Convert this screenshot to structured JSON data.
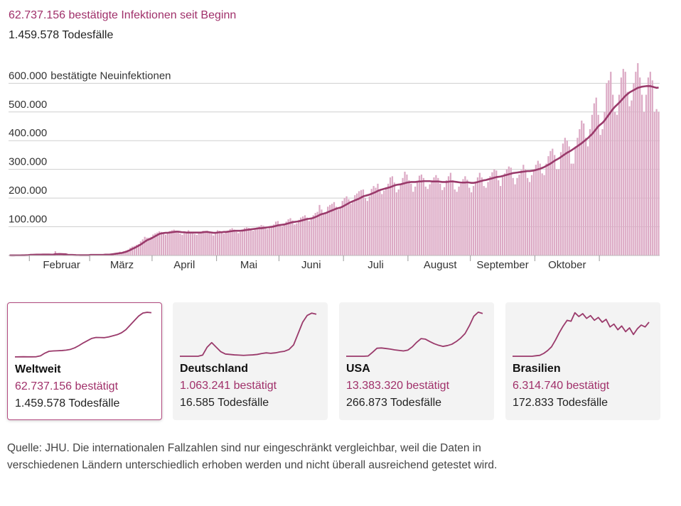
{
  "header": {
    "confirmed": "62.737.156 bestätigte Infektionen seit Beginn",
    "deaths": "1.459.578 Todesfälle"
  },
  "chart_data": {
    "type": "bar",
    "categories": [
      null,
      null,
      null,
      null,
      null,
      null,
      null,
      null,
      null,
      null,
      null,
      null,
      null,
      null,
      null,
      null,
      null,
      null,
      null,
      null,
      null,
      null,
      null,
      null,
      null,
      "Februar",
      null,
      null,
      null,
      null,
      null,
      null,
      null,
      null,
      null,
      null,
      null,
      null,
      null,
      null,
      null,
      null,
      null,
      null,
      null,
      null,
      null,
      null,
      null,
      null,
      null,
      null,
      null,
      null,
      "März",
      null,
      null,
      null,
      null,
      null,
      null,
      null,
      null,
      null,
      null,
      null,
      null,
      null,
      null,
      null,
      null,
      null,
      null,
      null,
      null,
      null,
      null,
      null,
      null,
      null,
      null,
      null,
      null,
      null,
      "April",
      null,
      null,
      null,
      null,
      null,
      null,
      null,
      null,
      null,
      null,
      null,
      null,
      null,
      null,
      null,
      null,
      null,
      null,
      null,
      null,
      null,
      null,
      null,
      null,
      null,
      null,
      null,
      null,
      null,
      null,
      "Mai",
      null,
      null,
      null,
      null,
      null,
      null,
      null,
      null,
      null,
      null,
      null,
      null,
      null,
      null,
      null,
      null,
      null,
      null,
      null,
      null,
      null,
      null,
      null,
      null,
      null,
      null,
      null,
      null,
      null,
      "Juni",
      null,
      null,
      null,
      null,
      null,
      null,
      null,
      null,
      null,
      null,
      null,
      null,
      null,
      null,
      null,
      null,
      null,
      null,
      null,
      null,
      null,
      null,
      null,
      null,
      null,
      null,
      null,
      null,
      null,
      null,
      "Juli",
      null,
      null,
      null,
      null,
      null,
      null,
      null,
      null,
      null,
      null,
      null,
      null,
      null,
      null,
      null,
      null,
      null,
      null,
      null,
      null,
      null,
      null,
      null,
      null,
      null,
      null,
      null,
      null,
      null,
      null,
      "August",
      null,
      null,
      null,
      null,
      null,
      null,
      null,
      null,
      null,
      null,
      null,
      null,
      null,
      null,
      null,
      null,
      null,
      null,
      null,
      null,
      null,
      null,
      null,
      null,
      null,
      null,
      null,
      null,
      null,
      "September",
      null,
      null,
      null,
      null,
      null,
      null,
      null,
      null,
      null,
      null,
      null,
      null,
      null,
      null,
      null,
      null,
      null,
      null,
      null,
      null,
      null,
      null,
      null,
      null,
      null,
      null,
      null,
      null,
      null,
      null,
      "Oktober",
      null,
      null,
      null,
      null,
      null,
      null,
      null,
      null,
      null,
      null,
      null,
      null,
      null,
      null,
      null,
      null,
      null,
      null,
      null,
      null,
      null,
      null,
      null,
      null,
      null,
      null,
      null,
      null,
      null,
      null,
      null,
      null,
      null,
      null,
      null,
      null,
      null,
      null,
      null,
      null,
      null,
      null,
      null,
      null
    ],
    "values": [
      600,
      100,
      800,
      700,
      700,
      800,
      1600,
      1500,
      2000,
      2100,
      3000,
      3000,
      3000,
      3000,
      4000,
      3000,
      3000,
      3000,
      3000,
      3000,
      3000,
      2000,
      15000,
      5000,
      3000,
      2000,
      2000,
      2000,
      1000,
      1000,
      1000,
      1000,
      1000,
      1000,
      1000,
      1000,
      1000,
      1000,
      1000,
      2000,
      2000,
      2000,
      2000,
      2000,
      2000,
      3000,
      4000,
      4000,
      4000,
      5000,
      7000,
      8000,
      10000,
      13000,
      11000,
      14000,
      17000,
      20000,
      27000,
      31000,
      33000,
      37000,
      40000,
      49000,
      56000,
      65000,
      62000,
      62000,
      65000,
      73000,
      77000,
      80000,
      84000,
      82000,
      76000,
      72000,
      76000,
      85000,
      88000,
      90000,
      86000,
      80000,
      76000,
      72000,
      78000,
      80000,
      88000,
      82000,
      80000,
      75000,
      72000,
      78000,
      82000,
      86000,
      84000,
      86000,
      78000,
      76000,
      70000,
      76000,
      88000,
      86000,
      80000,
      76000,
      80000,
      86000,
      92000,
      95000,
      90000,
      82000,
      78000,
      82000,
      88000,
      96000,
      98000,
      96000,
      88000,
      86000,
      92000,
      98000,
      102000,
      106000,
      104000,
      98000,
      92000,
      96000,
      100000,
      108000,
      118000,
      120000,
      110000,
      102000,
      108000,
      118000,
      126000,
      130000,
      122000,
      108000,
      112000,
      124000,
      132000,
      136000,
      140000,
      132000,
      120000,
      130000,
      140000,
      148000,
      152000,
      176000,
      160000,
      144000,
      150000,
      170000,
      176000,
      180000,
      186000,
      170000,
      160000,
      166000,
      190000,
      200000,
      206000,
      196000,
      180000,
      188000,
      210000,
      216000,
      224000,
      228000,
      230000,
      200000,
      190000,
      206000,
      232000,
      242000,
      236000,
      250000,
      228000,
      214000,
      226000,
      238000,
      250000,
      272000,
      276000,
      254000,
      220000,
      230000,
      250000,
      270000,
      292000,
      282000,
      262000,
      250000,
      222000,
      240000,
      260000,
      278000,
      282000,
      270000,
      240000,
      232000,
      248000,
      262000,
      272000,
      280000,
      270000,
      250000,
      228000,
      238000,
      262000,
      276000,
      288000,
      262000,
      230000,
      222000,
      240000,
      250000,
      266000,
      276000,
      264000,
      236000,
      220000,
      242000,
      258000,
      272000,
      288000,
      272000,
      242000,
      236000,
      256000,
      276000,
      290000,
      300000,
      296000,
      262000,
      242000,
      274000,
      286000,
      300000,
      310000,
      306000,
      270000,
      248000,
      270000,
      282000,
      298000,
      316000,
      300000,
      270000,
      256000,
      280000,
      300000,
      316000,
      330000,
      320000,
      286000,
      280000,
      320000,
      346000,
      364000,
      372000,
      350000,
      300000,
      300000,
      360000,
      390000,
      410000,
      400000,
      380000,
      320000,
      320000,
      380000,
      410000,
      440000,
      470000,
      460000,
      410000,
      380000,
      440000,
      490000,
      530000,
      550000,
      490000,
      420000,
      440000,
      500000,
      600000,
      610000,
      640000,
      560000,
      500000,
      490000,
      560000,
      620000,
      650000,
      640000,
      570000,
      520000,
      540000,
      600000,
      640000,
      670000,
      620000,
      560000,
      500000,
      560000,
      620000,
      640000,
      610000,
      500000,
      510000,
      500000
    ],
    "color": "#dcaac5",
    "line_values": [
      600,
      400,
      500,
      600,
      600,
      650,
      800,
      900,
      1100,
      1300,
      2200,
      2500,
      2700,
      2900,
      3100,
      3100,
      3200,
      3200,
      3200,
      3200,
      3100,
      3000,
      4700,
      4900,
      5000,
      4900,
      4600,
      4300,
      2400,
      2100,
      1900,
      1700,
      1300,
      1200,
      1100,
      1100,
      1000,
      1000,
      1100,
      2000,
      2000,
      2000,
      2000,
      2000,
      2000,
      2000,
      3000,
      3000,
      3000,
      4000,
      5000,
      6000,
      7000,
      8000,
      9000,
      11000,
      13000,
      16000,
      19000,
      23000,
      26000,
      30000,
      34000,
      38000,
      43000,
      48000,
      53000,
      56000,
      59000,
      63000,
      67000,
      71000,
      75000,
      77000,
      78000,
      79000,
      79000,
      80000,
      81000,
      82000,
      83000,
      83000,
      82000,
      81000,
      81000,
      80000,
      80000,
      80000,
      80000,
      80000,
      80000,
      80000,
      80000,
      81000,
      82000,
      82000,
      81000,
      80000,
      79000,
      79000,
      80000,
      81000,
      81000,
      82000,
      82000,
      83000,
      84000,
      85000,
      86000,
      86000,
      86000,
      86000,
      87000,
      88000,
      89000,
      90000,
      91000,
      92000,
      93000,
      94000,
      95000,
      95000,
      96000,
      97000,
      98000,
      99000,
      100000,
      101000,
      103000,
      105000,
      106000,
      107000,
      108000,
      110000,
      112000,
      114000,
      116000,
      117000,
      118000,
      119000,
      121000,
      123000,
      125000,
      127000,
      128000,
      129000,
      131000,
      134000,
      137000,
      141000,
      144000,
      146000,
      148000,
      151000,
      154000,
      157000,
      160000,
      163000,
      165000,
      167000,
      170000,
      174000,
      178000,
      182000,
      186000,
      189000,
      192000,
      195000,
      198000,
      202000,
      206000,
      208000,
      210000,
      212000,
      215000,
      218000,
      221000,
      225000,
      228000,
      230000,
      232000,
      234000,
      236000,
      238000,
      241000,
      244000,
      246000,
      247000,
      248000,
      250000,
      252000,
      254000,
      255000,
      256000,
      256000,
      256000,
      257000,
      258000,
      258000,
      259000,
      259000,
      259000,
      259000,
      258000,
      258000,
      258000,
      258000,
      257000,
      256000,
      256000,
      256000,
      257000,
      258000,
      258000,
      257000,
      256000,
      255000,
      254000,
      254000,
      254000,
      255000,
      254000,
      253000,
      253000,
      254000,
      256000,
      258000,
      260000,
      262000,
      263000,
      265000,
      267000,
      269000,
      271000,
      273000,
      274000,
      275000,
      277000,
      279000,
      281000,
      283000,
      285000,
      287000,
      288000,
      289000,
      290000,
      291000,
      292000,
      293000,
      294000,
      294000,
      295000,
      296000,
      298000,
      300000,
      302000,
      305000,
      308000,
      312000,
      316000,
      320000,
      325000,
      330000,
      334000,
      338000,
      343000,
      348000,
      353000,
      358000,
      362000,
      366000,
      371000,
      376000,
      381000,
      386000,
      391000,
      397000,
      403000,
      409000,
      416000,
      423000,
      432000,
      441000,
      450000,
      456000,
      462000,
      470000,
      480000,
      490000,
      500000,
      510000,
      518000,
      525000,
      532000,
      540000,
      548000,
      556000,
      562000,
      568000,
      572000,
      576000,
      580000,
      584000,
      586000,
      588000,
      589000,
      590000,
      590000,
      590000,
      588000,
      586000,
      584000,
      585000
    ],
    "line_color": "#9a3a6b",
    "ylim": [
      0,
      670000
    ],
    "yticks": [
      {
        "value": 100000,
        "label": "100.000"
      },
      {
        "value": 200000,
        "label": "200.000"
      },
      {
        "value": 300000,
        "label": "300.000"
      },
      {
        "value": 400000,
        "label": "400.000"
      },
      {
        "value": 500000,
        "label": "500.000"
      },
      {
        "value": 600000,
        "label": "600.000"
      }
    ],
    "y_label": "bestätigte Neuinfektionen",
    "grid": true
  },
  "cards": [
    {
      "name": "Weltweit",
      "confirmed": "62.737.156 bestätigt",
      "deaths": "1.459.578 Todesfälle",
      "selected": true,
      "ylim": [
        0,
        600000
      ],
      "values": [
        1000,
        2000,
        3000,
        2000,
        2000,
        3000,
        15000,
        50000,
        75000,
        80000,
        82000,
        85000,
        90000,
        100000,
        120000,
        150000,
        185000,
        215000,
        245000,
        258000,
        257000,
        255000,
        265000,
        280000,
        295000,
        320000,
        360000,
        420000,
        480000,
        540000,
        580000,
        590000,
        585000
      ]
    },
    {
      "name": "Deutschland",
      "confirmed": "1.063.241 bestätigt",
      "deaths": "16.585 Todesfälle",
      "selected": false,
      "ylim": [
        0,
        20000
      ],
      "values": [
        0,
        0,
        0,
        0,
        0,
        500,
        4000,
        6000,
        4000,
        2000,
        1000,
        800,
        600,
        500,
        400,
        500,
        600,
        800,
        1200,
        1500,
        1300,
        1500,
        1900,
        2200,
        3000,
        5000,
        10000,
        15000,
        18000,
        19000,
        18500
      ]
    },
    {
      "name": "USA",
      "confirmed": "13.383.320 bestätigt",
      "deaths": "266.873 Todesfälle",
      "selected": false,
      "ylim": [
        0,
        170000
      ],
      "values": [
        0,
        0,
        0,
        0,
        0,
        1000,
        15000,
        30000,
        31000,
        29000,
        27000,
        24000,
        22000,
        20000,
        23000,
        35000,
        52000,
        66000,
        64000,
        55000,
        47000,
        41000,
        37000,
        40000,
        45000,
        55000,
        68000,
        85000,
        115000,
        150000,
        165000,
        160000
      ]
    },
    {
      "name": "Brasilien",
      "confirmed": "6.314.740 bestätigt",
      "deaths": "172.833 Todesfälle",
      "selected": false,
      "ylim": [
        0,
        48000
      ],
      "values": [
        0,
        0,
        0,
        0,
        0,
        0,
        500,
        1000,
        3000,
        6000,
        10000,
        17000,
        25000,
        32000,
        38000,
        37000,
        46000,
        42000,
        45000,
        40000,
        43000,
        38000,
        41000,
        36000,
        39000,
        31000,
        34000,
        28000,
        32000,
        26000,
        30000,
        23000,
        29000,
        33000,
        31000,
        36000
      ]
    }
  ],
  "source": [
    "Quelle: JHU. Die internationalen Fallzahlen sind nur eingeschränkt vergleichbar, weil die Daten in",
    "verschiedenen Ländern unterschiedlich erhoben werden und nicht überall ausreichend getestet wird."
  ]
}
